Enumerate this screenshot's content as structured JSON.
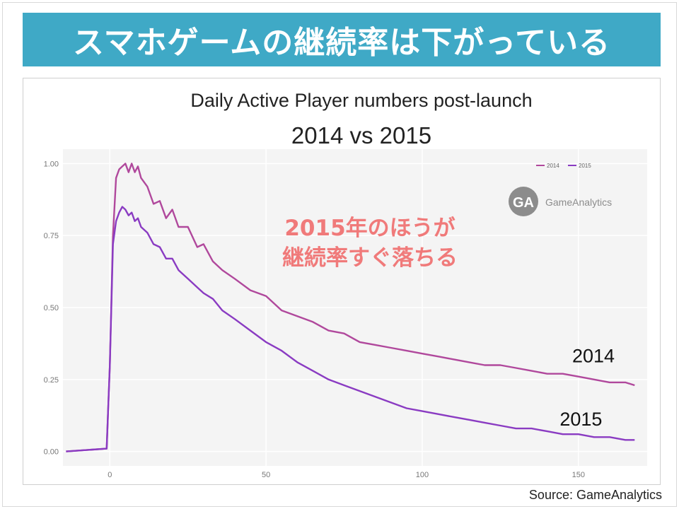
{
  "slide": {
    "title": "スマホゲームの継続率は下がっている",
    "source": "Source: GameAnalytics"
  },
  "colors": {
    "banner": "#3fa9c6",
    "series_2014": "#b0489c",
    "series_2015": "#8a3bc2",
    "annotation": "#f07a7a",
    "plot_bg": "#f4f4f4"
  },
  "annotation": {
    "line1": "2015年のほうが",
    "line2": "継続率すぐ落ちる"
  },
  "logo": {
    "mark": "GA",
    "text": "GameAnalytics"
  },
  "chart_data": {
    "type": "line",
    "title": "Daily Active Player numbers post-launch",
    "subtitle": "2014 vs 2015",
    "xlabel": "",
    "ylabel": "",
    "xlim": [
      -15,
      172
    ],
    "ylim": [
      -0.05,
      1.05
    ],
    "xticks": [
      0,
      50,
      100,
      150
    ],
    "yticks": [
      0.0,
      0.25,
      0.5,
      0.75,
      1.0
    ],
    "ytick_labels": [
      "0.00",
      "0.25",
      "0.50",
      "0.75",
      "1.00"
    ],
    "grid": true,
    "legend_position": "top-right",
    "series": [
      {
        "name": "2014",
        "end_label": "2014",
        "color": "#b0489c",
        "x": [
          -14,
          -1,
          0,
          1,
          2,
          3,
          4,
          5,
          6,
          7,
          8,
          9,
          10,
          12,
          14,
          16,
          18,
          20,
          22,
          25,
          28,
          30,
          33,
          36,
          40,
          45,
          50,
          55,
          60,
          65,
          70,
          75,
          80,
          85,
          90,
          95,
          100,
          105,
          110,
          115,
          120,
          125,
          130,
          135,
          140,
          145,
          150,
          155,
          160,
          165,
          168
        ],
        "y": [
          0.0,
          0.01,
          0.3,
          0.75,
          0.95,
          0.98,
          0.99,
          1.0,
          0.97,
          1.0,
          0.97,
          0.99,
          0.95,
          0.92,
          0.86,
          0.87,
          0.81,
          0.84,
          0.78,
          0.78,
          0.71,
          0.72,
          0.66,
          0.63,
          0.6,
          0.56,
          0.54,
          0.49,
          0.47,
          0.45,
          0.42,
          0.41,
          0.38,
          0.37,
          0.36,
          0.35,
          0.34,
          0.33,
          0.32,
          0.31,
          0.3,
          0.3,
          0.29,
          0.28,
          0.27,
          0.27,
          0.26,
          0.25,
          0.24,
          0.24,
          0.23
        ]
      },
      {
        "name": "2015",
        "end_label": "2015",
        "color": "#8a3bc2",
        "x": [
          -14,
          -1,
          0,
          1,
          2,
          3,
          4,
          5,
          6,
          7,
          8,
          9,
          10,
          12,
          14,
          16,
          18,
          20,
          22,
          25,
          28,
          30,
          33,
          36,
          40,
          45,
          50,
          55,
          60,
          65,
          70,
          75,
          80,
          85,
          90,
          95,
          100,
          105,
          110,
          115,
          120,
          125,
          130,
          135,
          140,
          145,
          150,
          155,
          160,
          165,
          168
        ],
        "y": [
          0.0,
          0.01,
          0.3,
          0.72,
          0.8,
          0.83,
          0.85,
          0.84,
          0.82,
          0.83,
          0.8,
          0.81,
          0.78,
          0.76,
          0.72,
          0.71,
          0.67,
          0.67,
          0.63,
          0.6,
          0.57,
          0.55,
          0.53,
          0.49,
          0.46,
          0.42,
          0.38,
          0.35,
          0.31,
          0.28,
          0.25,
          0.23,
          0.21,
          0.19,
          0.17,
          0.15,
          0.14,
          0.13,
          0.12,
          0.11,
          0.1,
          0.09,
          0.08,
          0.08,
          0.07,
          0.06,
          0.06,
          0.05,
          0.05,
          0.04,
          0.04
        ]
      }
    ]
  }
}
